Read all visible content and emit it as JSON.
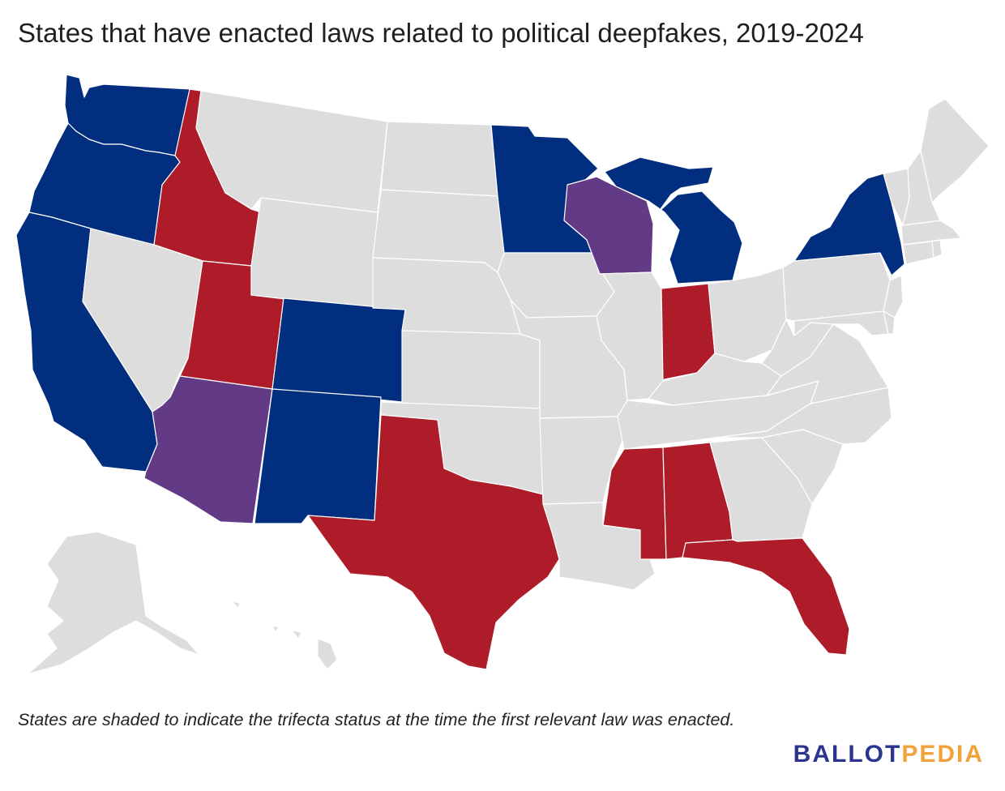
{
  "title": "States that have enacted laws related to political deepfakes, 2019-2024",
  "footnote": "States are shaded to indicate the trifecta status at the time the first relevant law was enacted.",
  "logo": {
    "part1": "BALLOT",
    "part2": "PEDIA",
    "color1": "#2b3590",
    "color2": "#f2a23a"
  },
  "colors": {
    "democratic": "#012e7f",
    "republican": "#ad1c28",
    "divided": "#633a86",
    "no_law": "#dddddd"
  },
  "states": [
    {
      "id": "WA",
      "status": "democratic"
    },
    {
      "id": "OR",
      "status": "democratic"
    },
    {
      "id": "CA",
      "status": "democratic"
    },
    {
      "id": "ID",
      "status": "republican"
    },
    {
      "id": "NV",
      "status": "no_law"
    },
    {
      "id": "UT",
      "status": "republican"
    },
    {
      "id": "AZ",
      "status": "divided"
    },
    {
      "id": "MT",
      "status": "no_law"
    },
    {
      "id": "WY",
      "status": "no_law"
    },
    {
      "id": "CO",
      "status": "democratic"
    },
    {
      "id": "NM",
      "status": "democratic"
    },
    {
      "id": "ND",
      "status": "no_law"
    },
    {
      "id": "SD",
      "status": "no_law"
    },
    {
      "id": "NE",
      "status": "no_law"
    },
    {
      "id": "KS",
      "status": "no_law"
    },
    {
      "id": "OK",
      "status": "no_law"
    },
    {
      "id": "TX",
      "status": "republican"
    },
    {
      "id": "MN",
      "status": "democratic"
    },
    {
      "id": "IA",
      "status": "no_law"
    },
    {
      "id": "MO",
      "status": "no_law"
    },
    {
      "id": "AR",
      "status": "no_law"
    },
    {
      "id": "LA",
      "status": "no_law"
    },
    {
      "id": "WI",
      "status": "divided"
    },
    {
      "id": "IL",
      "status": "no_law"
    },
    {
      "id": "MI",
      "status": "democratic"
    },
    {
      "id": "IN",
      "status": "republican"
    },
    {
      "id": "OH",
      "status": "no_law"
    },
    {
      "id": "KY",
      "status": "no_law"
    },
    {
      "id": "TN",
      "status": "no_law"
    },
    {
      "id": "MS",
      "status": "republican"
    },
    {
      "id": "AL",
      "status": "republican"
    },
    {
      "id": "GA",
      "status": "no_law"
    },
    {
      "id": "FL",
      "status": "republican"
    },
    {
      "id": "SC",
      "status": "no_law"
    },
    {
      "id": "NC",
      "status": "no_law"
    },
    {
      "id": "VA",
      "status": "no_law"
    },
    {
      "id": "WV",
      "status": "no_law"
    },
    {
      "id": "PA",
      "status": "no_law"
    },
    {
      "id": "NY",
      "status": "democratic"
    },
    {
      "id": "NJ",
      "status": "no_law"
    },
    {
      "id": "MD",
      "status": "no_law"
    },
    {
      "id": "DE",
      "status": "no_law"
    },
    {
      "id": "CT",
      "status": "no_law"
    },
    {
      "id": "RI",
      "status": "no_law"
    },
    {
      "id": "MA",
      "status": "no_law"
    },
    {
      "id": "VT",
      "status": "no_law"
    },
    {
      "id": "NH",
      "status": "no_law"
    },
    {
      "id": "ME",
      "status": "no_law"
    },
    {
      "id": "AK",
      "status": "no_law"
    },
    {
      "id": "HI",
      "status": "no_law"
    }
  ]
}
